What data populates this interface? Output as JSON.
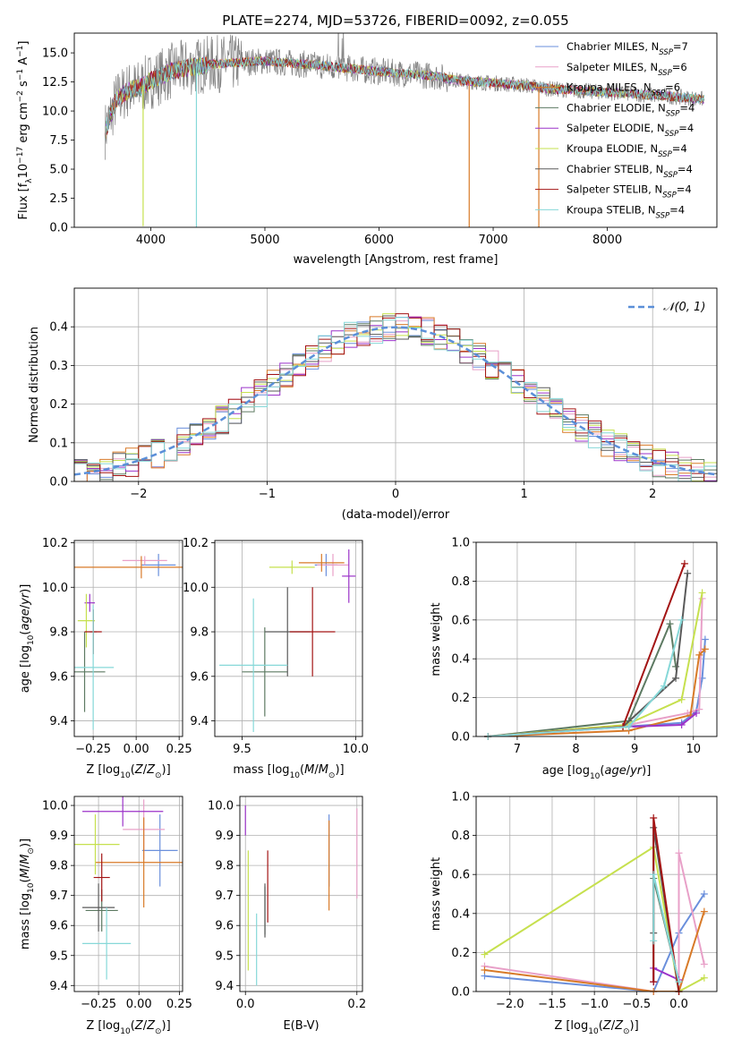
{
  "palette": [
    "#6a8fdc",
    "#e8a0c8",
    "#d87a28",
    "#5d7a62",
    "#9b33c9",
    "#c6e04e",
    "#5a5a5a",
    "#a31414",
    "#86d8d8"
  ],
  "chart_data": [
    {
      "id": "spectrum",
      "type": "line",
      "title": "PLATE=2274, MJD=53726, FIBERID=0092, z=0.055",
      "xlabel": "wavelength [Angstrom, rest frame]",
      "ylabel": "Flux [fλ10⁻¹⁷ erg cm⁻² s⁻¹ A⁻¹]",
      "xlim": [
        3330,
        8960
      ],
      "ylim": [
        0,
        16.7
      ],
      "xticks": [
        4000,
        5000,
        6000,
        7000,
        8000
      ],
      "xtick_labels": [
        "4000",
        "5000",
        "6000",
        "7000",
        "8000"
      ],
      "yticks": [
        0,
        2.5,
        5,
        7.5,
        10,
        12.5,
        15
      ],
      "ytick_labels": [
        "0.0",
        "2.5",
        "5.0",
        "7.5",
        "10.0",
        "12.5",
        "15.0"
      ],
      "grid": false,
      "legend_position": "top-right",
      "data_color": "#808080",
      "spectrum_x_range": [
        3600,
        8850
      ],
      "continuum_points": {
        "x": [
          3600,
          3700,
          3800,
          3900,
          4000,
          4200,
          4500,
          5000,
          5500,
          6000,
          6500,
          6700,
          7000,
          7300,
          7500,
          8000,
          8500,
          8850
        ],
        "y": [
          8.3,
          11.0,
          11.8,
          12.0,
          12.6,
          13.5,
          14.0,
          14.3,
          13.9,
          13.4,
          13.0,
          12.6,
          12.4,
          12.2,
          11.9,
          11.6,
          11.3,
          11.0
        ]
      },
      "absorption_lines": [
        {
          "x": 3933,
          "depth": 0.1
        },
        {
          "x": 4400,
          "depth": 0.0
        },
        {
          "x": 6790,
          "depth": 0.0
        },
        {
          "x": 7400,
          "depth": 0.0
        }
      ],
      "series": [
        {
          "name": "Chabrier MILES, N_SSP=7",
          "color": "#6a8fdc"
        },
        {
          "name": "Salpeter MILES, N_SSP=6",
          "color": "#e8a0c8"
        },
        {
          "name": "Kroupa MILES, N_SSP=6",
          "color": "#d87a28"
        },
        {
          "name": "Chabrier ELODIE, N_SSP=4",
          "color": "#5d7a62"
        },
        {
          "name": "Salpeter ELODIE, N_SSP=4",
          "color": "#9b33c9"
        },
        {
          "name": "Kroupa ELODIE, N_SSP=4",
          "color": "#c6e04e"
        },
        {
          "name": "Chabrier STELIB, N_SSP=4",
          "color": "#5a5a5a"
        },
        {
          "name": "Salpeter STELIB, N_SSP=4",
          "color": "#a31414"
        },
        {
          "name": "Kroupa STELIB, N_SSP=4",
          "color": "#86d8d8"
        }
      ],
      "legend_labels": [
        {
          "pre": "Chabrier MILES, N",
          "sub": "SSP",
          "post": "=7"
        },
        {
          "pre": "Salpeter MILES, N",
          "sub": "SSP",
          "post": "=6"
        },
        {
          "pre": "Kroupa MILES, N",
          "sub": "SSP",
          "post": "=6"
        },
        {
          "pre": "Chabrier ELODIE, N",
          "sub": "SSP",
          "post": "=4"
        },
        {
          "pre": "Salpeter ELODIE, N",
          "sub": "SSP",
          "post": "=4"
        },
        {
          "pre": "Kroupa ELODIE, N",
          "sub": "SSP",
          "post": "=4"
        },
        {
          "pre": "Chabrier STELIB, N",
          "sub": "SSP",
          "post": "=4"
        },
        {
          "pre": "Salpeter STELIB, N",
          "sub": "SSP",
          "post": "=4"
        },
        {
          "pre": "Kroupa STELIB, N",
          "sub": "SSP",
          "post": "=4"
        }
      ]
    },
    {
      "id": "residuals",
      "type": "histogram",
      "xlabel": "(data-model)/error",
      "ylabel": "Normed distribution",
      "xlim": [
        -2.5,
        2.5
      ],
      "ylim": [
        0,
        0.5
      ],
      "xticks": [
        -2,
        -1,
        0,
        1,
        2
      ],
      "xtick_labels": [
        "−2",
        "−1",
        "0",
        "1",
        "2"
      ],
      "yticks": [
        0,
        0.1,
        0.2,
        0.3,
        0.4
      ],
      "ytick_labels": [
        "0.0",
        "0.1",
        "0.2",
        "0.3",
        "0.4"
      ],
      "grid": true,
      "bin_width": 0.1,
      "reference_curve": {
        "name": "N(0,1)",
        "label_main": "𝒩(0, 1)",
        "color": "#5b8fd8",
        "dashed": true
      },
      "legend_position": "top-right"
    },
    {
      "id": "age_vs_Z",
      "type": "errorbar",
      "xlabel": "Z [log10(Z/Z⊙)]",
      "ylabel": "age  [log10(age/yr)]",
      "xlim": [
        -0.36,
        0.27
      ],
      "ylim": [
        9.33,
        10.21
      ],
      "xticks": [
        -0.25,
        0,
        0.25
      ],
      "xtick_labels": [
        "−0.25",
        "0.00",
        "0.25"
      ],
      "yticks": [
        9.4,
        9.6,
        9.8,
        10.0,
        10.2
      ],
      "ytick_labels": [
        "9.4",
        "9.6",
        "9.8",
        "10.0",
        "10.2"
      ],
      "grid": true,
      "points": [
        {
          "x": 0.13,
          "xerr": 0.1,
          "y": 10.1,
          "yerr": 0.05,
          "c": 0
        },
        {
          "x": 0.05,
          "xerr": 0.13,
          "y": 10.12,
          "yerr": 0.02,
          "c": 1
        },
        {
          "x": 0.03,
          "xerr": 0.4,
          "y": 10.09,
          "yerr": 0.05,
          "c": 2
        },
        {
          "x": -0.3,
          "xerr": 0.12,
          "y": 9.62,
          "yerr": 0.18,
          "c": 3
        },
        {
          "x": -0.27,
          "xerr": 0.03,
          "y": 9.93,
          "yerr": 0.04,
          "c": 4
        },
        {
          "x": -0.29,
          "xerr": 0.05,
          "y": 9.85,
          "yerr": 0.12,
          "c": 5
        },
        {
          "x": -0.25,
          "xerr": 0.02,
          "y": 9.8,
          "yerr": 0.1,
          "c": 6
        },
        {
          "x": -0.25,
          "xerr": 0.05,
          "y": 9.8,
          "yerr": 0.1,
          "c": 7
        },
        {
          "x": -0.25,
          "xerr": 0.12,
          "y": 9.64,
          "yerr": 0.28,
          "c": 8
        }
      ]
    },
    {
      "id": "age_vs_mass",
      "type": "errorbar",
      "xlabel": "mass [log10(M/M⊙)]",
      "ylabel": "",
      "xlim": [
        9.38,
        10.03
      ],
      "ylim": [
        9.33,
        10.21
      ],
      "xticks": [
        9.5,
        10.0
      ],
      "xtick_labels": [
        "9.5",
        "10.0"
      ],
      "yticks": [
        9.4,
        9.6,
        9.8,
        10.0,
        10.2
      ],
      "ytick_labels": [
        "9.4",
        "9.6",
        "9.8",
        "10.0",
        "10.2"
      ],
      "grid": true,
      "points": [
        {
          "x": 9.87,
          "xerr": 0.05,
          "y": 10.1,
          "yerr": 0.05,
          "c": 0
        },
        {
          "x": 9.9,
          "xerr": 0.07,
          "y": 10.1,
          "yerr": 0.05,
          "c": 1
        },
        {
          "x": 9.85,
          "xerr": 0.1,
          "y": 10.11,
          "yerr": 0.04,
          "c": 2
        },
        {
          "x": 9.6,
          "xerr": 0.1,
          "y": 9.62,
          "yerr": 0.2,
          "c": 3
        },
        {
          "x": 9.97,
          "xerr": 0.03,
          "y": 10.05,
          "yerr": 0.12,
          "c": 4
        },
        {
          "x": 9.72,
          "xerr": 0.1,
          "y": 10.09,
          "yerr": 0.03,
          "c": 5
        },
        {
          "x": 9.7,
          "xerr": 0.1,
          "y": 9.8,
          "yerr": 0.2,
          "c": 6
        },
        {
          "x": 9.81,
          "xerr": 0.1,
          "y": 9.8,
          "yerr": 0.2,
          "c": 7
        },
        {
          "x": 9.55,
          "xerr": 0.15,
          "y": 9.65,
          "yerr": 0.3,
          "c": 8
        }
      ]
    },
    {
      "id": "weight_vs_age",
      "type": "line",
      "xlabel": "age  [log10(age/yr)]",
      "ylabel": "mass weight",
      "xlim": [
        6.3,
        10.4
      ],
      "ylim": [
        0,
        1.0
      ],
      "xticks": [
        7,
        8,
        9,
        10
      ],
      "xtick_labels": [
        "7",
        "8",
        "9",
        "10"
      ],
      "yticks": [
        0,
        0.2,
        0.4,
        0.6,
        0.8,
        1.0
      ],
      "ytick_labels": [
        "0.0",
        "0.2",
        "0.4",
        "0.6",
        "0.8",
        "1.0"
      ],
      "grid": true,
      "series": [
        {
          "c": 0,
          "x": [
            6.5,
            8.8,
            9.8,
            10.05,
            10.15,
            10.2
          ],
          "y": [
            0.0,
            0.05,
            0.07,
            0.13,
            0.3,
            0.5
          ]
        },
        {
          "c": 1,
          "x": [
            6.5,
            8.9,
            9.9,
            10.1,
            10.15
          ],
          "y": [
            0.0,
            0.06,
            0.12,
            0.14,
            0.71
          ]
        },
        {
          "c": 2,
          "x": [
            6.5,
            8.9,
            9.95,
            10.1,
            10.2
          ],
          "y": [
            0.0,
            0.03,
            0.11,
            0.42,
            0.45
          ]
        },
        {
          "c": 3,
          "x": [
            6.5,
            8.9,
            9.6,
            9.7
          ],
          "y": [
            0.0,
            0.08,
            0.58,
            0.36
          ]
        },
        {
          "c": 4,
          "x": [
            6.5,
            8.9,
            9.8,
            10.05
          ],
          "y": [
            0.0,
            0.05,
            0.06,
            0.12
          ]
        },
        {
          "c": 5,
          "x": [
            6.5,
            8.85,
            9.8,
            10.15
          ],
          "y": [
            0.0,
            0.06,
            0.19,
            0.74
          ]
        },
        {
          "c": 6,
          "x": [
            6.5,
            8.8,
            9.7,
            9.9
          ],
          "y": [
            0.0,
            0.05,
            0.3,
            0.84
          ]
        },
        {
          "c": 7,
          "x": [
            6.5,
            8.8,
            9.85
          ],
          "y": [
            0.0,
            0.05,
            0.89
          ]
        },
        {
          "c": 8,
          "x": [
            6.5,
            8.9,
            9.5,
            9.8
          ],
          "y": [
            0.0,
            0.05,
            0.26,
            0.6
          ]
        }
      ]
    },
    {
      "id": "mass_vs_Z",
      "type": "errorbar",
      "xlabel": "Z [log10(Z/Z⊙)]",
      "ylabel": "mass [log10(M/M⊙)]",
      "xlim": [
        -0.4,
        0.27
      ],
      "ylim": [
        9.38,
        10.03
      ],
      "xticks": [
        -0.25,
        0,
        0.25
      ],
      "xtick_labels": [
        "−0.25",
        "0.00",
        "0.25"
      ],
      "yticks": [
        9.4,
        9.5,
        9.6,
        9.7,
        9.8,
        9.9,
        10.0
      ],
      "ytick_labels": [
        "9.4",
        "9.5",
        "9.6",
        "9.7",
        "9.8",
        "9.9",
        "10.0"
      ],
      "grid": true,
      "points": [
        {
          "x": 0.13,
          "xerr": 0.11,
          "y": 9.85,
          "yerr": 0.12,
          "c": 0
        },
        {
          "x": 0.03,
          "xerr": 0.13,
          "y": 9.92,
          "yerr": 0.1,
          "c": 1
        },
        {
          "x": 0.03,
          "xerr": 0.3,
          "y": 9.81,
          "yerr": 0.15,
          "c": 2
        },
        {
          "x": -0.23,
          "xerr": 0.1,
          "y": 9.65,
          "yerr": 0.07,
          "c": 3
        },
        {
          "x": -0.1,
          "xerr": 0.25,
          "y": 9.98,
          "yerr": 0.05,
          "c": 4
        },
        {
          "x": -0.27,
          "xerr": 0.15,
          "y": 9.87,
          "yerr": 0.1,
          "c": 5
        },
        {
          "x": -0.25,
          "xerr": 0.1,
          "y": 9.66,
          "yerr": 0.08,
          "c": 6
        },
        {
          "x": -0.23,
          "xerr": 0.05,
          "y": 9.76,
          "yerr": 0.08,
          "c": 7
        },
        {
          "x": -0.2,
          "xerr": 0.15,
          "y": 9.54,
          "yerr": 0.12,
          "c": 8
        }
      ]
    },
    {
      "id": "mass_vs_EBV",
      "type": "errorbar",
      "xlabel": "E(B-V)",
      "ylabel": "",
      "xlim": [
        -0.01,
        0.21
      ],
      "ylim": [
        9.38,
        10.03
      ],
      "xticks": [
        0.0,
        0.2
      ],
      "xtick_labels": [
        "0.0",
        "0.2"
      ],
      "yticks": [
        9.4,
        9.5,
        9.6,
        9.7,
        9.8,
        9.9,
        10.0
      ],
      "ytick_labels": [
        "9.4",
        "9.5",
        "9.6",
        "9.7",
        "9.8",
        "9.9",
        "10.0"
      ],
      "grid": true,
      "points": [
        {
          "x": 0.15,
          "xerr": 0.0,
          "y": 9.85,
          "yerr": 0.12,
          "c": 0
        },
        {
          "x": 0.2,
          "xerr": 0.0,
          "y": 9.84,
          "yerr": 0.15,
          "c": 1
        },
        {
          "x": 0.15,
          "xerr": 0.0,
          "y": 9.8,
          "yerr": 0.15,
          "c": 2
        },
        {
          "x": 0.035,
          "xerr": 0.0,
          "y": 9.65,
          "yerr": 0.08,
          "c": 3
        },
        {
          "x": 0.0,
          "xerr": 0.0,
          "y": 9.95,
          "yerr": 0.05,
          "c": 4
        },
        {
          "x": 0.005,
          "xerr": 0.0,
          "y": 9.65,
          "yerr": 0.2,
          "c": 5
        },
        {
          "x": 0.035,
          "xerr": 0.0,
          "y": 9.65,
          "yerr": 0.09,
          "c": 6
        },
        {
          "x": 0.04,
          "xerr": 0.0,
          "y": 9.73,
          "yerr": 0.12,
          "c": 7
        },
        {
          "x": 0.02,
          "xerr": 0.0,
          "y": 9.52,
          "yerr": 0.12,
          "c": 8
        }
      ]
    },
    {
      "id": "weight_vs_Z",
      "type": "line",
      "xlabel": "Z [log10(Z/Z⊙)]",
      "ylabel": "mass weight",
      "xlim": [
        -2.4,
        0.45
      ],
      "ylim": [
        0,
        1.0
      ],
      "xticks": [
        -2.0,
        -1.5,
        -1.0,
        -0.5,
        0.0
      ],
      "xtick_labels": [
        "−2.0",
        "−1.5",
        "−1.0",
        "−0.5",
        "0.0"
      ],
      "yticks": [
        0,
        0.2,
        0.4,
        0.6,
        0.8,
        1.0
      ],
      "ytick_labels": [
        "0.0",
        "0.2",
        "0.4",
        "0.6",
        "0.8",
        "1.0"
      ],
      "grid": true,
      "series": [
        {
          "c": 0,
          "x": [
            -2.3,
            -0.3,
            0.0,
            0.3
          ],
          "y": [
            0.08,
            0.0,
            0.3,
            0.5
          ]
        },
        {
          "c": 1,
          "x": [
            -2.3,
            -0.3,
            0.0,
            0.0,
            0.3
          ],
          "y": [
            0.13,
            0.0,
            0.0,
            0.71,
            0.14
          ]
        },
        {
          "c": 2,
          "x": [
            -2.3,
            -0.3,
            0.0,
            0.3
          ],
          "y": [
            0.11,
            0.0,
            0.0,
            0.41
          ]
        },
        {
          "c": 3,
          "x": [
            -0.3,
            -0.3,
            0.0
          ],
          "y": [
            0.05,
            0.58,
            0.05
          ]
        },
        {
          "c": 4,
          "x": [
            -0.3,
            -0.3,
            0.0
          ],
          "y": [
            0.05,
            0.12,
            0.06
          ]
        },
        {
          "c": 5,
          "x": [
            -2.3,
            -0.3,
            0.0,
            0.3
          ],
          "y": [
            0.19,
            0.74,
            0.0,
            0.07
          ]
        },
        {
          "c": 6,
          "x": [
            -0.3,
            -0.3,
            0.0
          ],
          "y": [
            0.3,
            0.84,
            0.0
          ]
        },
        {
          "c": 7,
          "x": [
            -0.3,
            -0.3,
            0.0
          ],
          "y": [
            0.05,
            0.89,
            0.0
          ]
        },
        {
          "c": 8,
          "x": [
            -0.3,
            -0.3,
            0.0
          ],
          "y": [
            0.26,
            0.6,
            0.05
          ]
        }
      ]
    }
  ]
}
